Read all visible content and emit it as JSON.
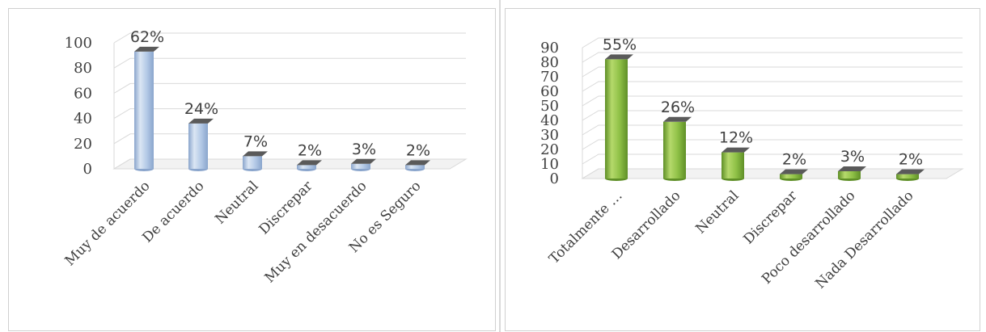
{
  "chart_data": [
    {
      "type": "bar",
      "categories": [
        "Muy de acuerdo",
        "De acuerdo",
        "Neutral",
        "Discrepar",
        "Muy en desacuerdo",
        "No es Seguro"
      ],
      "values": [
        93,
        36,
        10,
        3,
        4,
        3
      ],
      "data_labels": [
        "62%",
        "24%",
        "7%",
        "2%",
        "3%",
        "2%"
      ],
      "yticks": [
        "0",
        "20",
        "40",
        "60",
        "80",
        "100"
      ],
      "ylim": [
        0,
        100
      ],
      "title": "",
      "xlabel": "",
      "ylabel": "",
      "grid": true,
      "colors": {
        "bar_light": "#dbe6f4",
        "bar_mid": "#b3c9e6",
        "bar_dark": "#8aa5cc",
        "cap": "#5a5a5a"
      }
    },
    {
      "type": "bar",
      "categories": [
        "Totalmente …",
        "Desarrollado",
        "Neutral",
        "Discrepar",
        "Poco desarrollado",
        "Nada Desarrollado"
      ],
      "values": [
        82,
        39,
        18,
        3,
        5,
        3
      ],
      "data_labels": [
        "55%",
        "26%",
        "12%",
        "2%",
        "3%",
        "2%"
      ],
      "yticks": [
        "0",
        "10",
        "20",
        "30",
        "40",
        "50",
        "60",
        "70",
        "80",
        "90"
      ],
      "ylim": [
        0,
        90
      ],
      "title": "",
      "xlabel": "",
      "ylabel": "",
      "grid": true,
      "colors": {
        "bar_light": "#b5d96b",
        "bar_mid": "#8ec046",
        "bar_dark": "#5f8f27",
        "cap": "#5a5a5a"
      }
    }
  ]
}
